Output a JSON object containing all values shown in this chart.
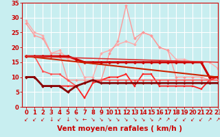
{
  "xlabel": "Vent moyen/en rafales ( km/h )",
  "xlim": [
    -0.5,
    23
  ],
  "ylim": [
    0,
    35
  ],
  "yticks": [
    0,
    5,
    10,
    15,
    20,
    25,
    30,
    35
  ],
  "xticks": [
    0,
    1,
    2,
    3,
    4,
    5,
    6,
    7,
    8,
    9,
    10,
    11,
    12,
    13,
    14,
    15,
    16,
    17,
    18,
    19,
    20,
    21,
    22,
    23
  ],
  "bg_color": "#c8eef0",
  "grid_color": "#ffffff",
  "lines": [
    {
      "x": [
        0,
        1,
        2,
        3,
        4,
        5,
        6,
        7,
        8,
        9,
        10,
        11,
        12,
        13,
        14,
        15,
        16,
        17,
        18,
        19,
        20,
        21,
        22,
        23
      ],
      "y": [
        29,
        25,
        24,
        18,
        19,
        16,
        16,
        10,
        10,
        18,
        19,
        21,
        22,
        21,
        25,
        24,
        20,
        19,
        16,
        16,
        15,
        15,
        15,
        13
      ],
      "color": "#ffaaaa",
      "lw": 1.0,
      "marker": "D",
      "ms": 2.0,
      "zorder": 2
    },
    {
      "x": [
        0,
        23
      ],
      "y": [
        17,
        10
      ],
      "color": "#cc2200",
      "lw": 1.5,
      "marker": null,
      "ms": 0,
      "zorder": 5
    },
    {
      "x": [
        0,
        23
      ],
      "y": [
        17,
        15
      ],
      "color": "#dd3333",
      "lw": 1.2,
      "marker": null,
      "ms": 0,
      "zorder": 5
    },
    {
      "x": [
        0,
        1,
        2,
        3,
        4,
        5,
        6,
        7,
        8,
        9,
        10,
        11,
        12,
        13,
        14,
        15,
        16,
        17,
        18,
        19,
        20,
        21,
        22,
        23
      ],
      "y": [
        28,
        24,
        23,
        18,
        18,
        9,
        9,
        9,
        9,
        9,
        18,
        22,
        34,
        23,
        25,
        24,
        20,
        19,
        10,
        10,
        10,
        10,
        9,
        10
      ],
      "color": "#ff9999",
      "lw": 1.0,
      "marker": "D",
      "ms": 2.0,
      "zorder": 2
    },
    {
      "x": [
        0,
        1,
        2,
        3,
        4,
        5,
        6,
        7,
        8,
        9,
        10,
        11,
        12,
        13,
        14,
        15,
        16,
        17,
        18,
        19,
        20,
        21,
        22,
        23
      ],
      "y": [
        17,
        17,
        17,
        17,
        17,
        17,
        16,
        15,
        15,
        15,
        15,
        15,
        15,
        15,
        15,
        15,
        15,
        15,
        15,
        15,
        15,
        15,
        10,
        10
      ],
      "color": "#cc0000",
      "lw": 2.2,
      "marker": "D",
      "ms": 2.5,
      "zorder": 4
    },
    {
      "x": [
        0,
        1,
        2,
        3,
        4,
        5,
        6,
        7,
        8,
        9,
        10,
        11,
        12,
        13,
        14,
        15,
        16,
        17,
        18,
        19,
        20,
        21,
        22,
        23
      ],
      "y": [
        10,
        10,
        7,
        7,
        7,
        7,
        7,
        3,
        8,
        9,
        10,
        10,
        11,
        7,
        11,
        11,
        7,
        7,
        7,
        7,
        7,
        6,
        9,
        10
      ],
      "color": "#ff2222",
      "lw": 1.3,
      "marker": "s",
      "ms": 2.0,
      "zorder": 3
    },
    {
      "x": [
        0,
        1,
        2,
        3,
        4,
        5,
        6,
        7,
        8,
        9,
        10,
        11,
        12,
        13,
        14,
        15,
        16,
        17,
        18,
        19,
        20,
        21,
        22,
        23
      ],
      "y": [
        10,
        10,
        7,
        7,
        7,
        5,
        7,
        8,
        9,
        8,
        8,
        8,
        8,
        8,
        8,
        8,
        8,
        8,
        8,
        8,
        8,
        8,
        8,
        8
      ],
      "color": "#880000",
      "lw": 2.0,
      "marker": "D",
      "ms": 2.0,
      "zorder": 4
    },
    {
      "x": [
        0,
        1,
        2,
        3,
        4,
        5,
        6,
        7,
        8,
        9,
        10,
        11,
        12,
        13,
        14,
        15,
        16,
        17,
        18,
        19,
        20,
        21,
        22,
        23
      ],
      "y": [
        17,
        17,
        12,
        11,
        11,
        9,
        7,
        8,
        9,
        9,
        9,
        9,
        9,
        9,
        9,
        9,
        9,
        9,
        9,
        9,
        9,
        9,
        9,
        9
      ],
      "color": "#ff5555",
      "lw": 1.2,
      "marker": "o",
      "ms": 2.0,
      "zorder": 3
    }
  ],
  "arrow_color": "#cc0000",
  "xlabel_fontsize": 7.5,
  "tick_fontsize": 6,
  "tick_color": "#cc0000"
}
